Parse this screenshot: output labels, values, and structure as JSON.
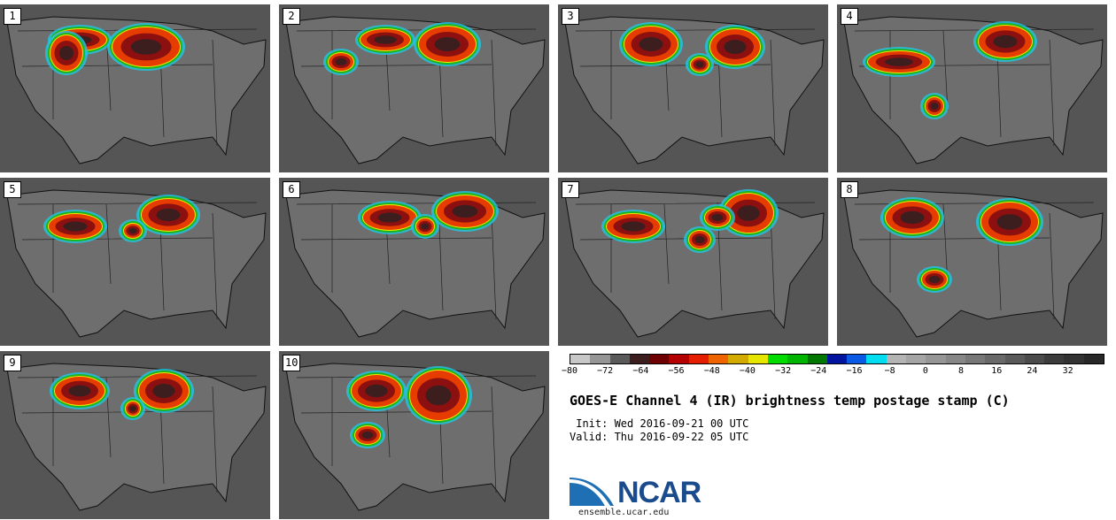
{
  "panels": [
    {
      "label": "1"
    },
    {
      "label": "2"
    },
    {
      "label": "3"
    },
    {
      "label": "4"
    },
    {
      "label": "5"
    },
    {
      "label": "6"
    },
    {
      "label": "7"
    },
    {
      "label": "8"
    },
    {
      "label": "9"
    },
    {
      "label": "10"
    }
  ],
  "colorbar": {
    "colors": [
      "#c8c8c8",
      "#969696",
      "#5a5a5a",
      "#3c1e1e",
      "#6e0000",
      "#b40000",
      "#e61e00",
      "#f06400",
      "#d2aa00",
      "#e6e600",
      "#00dc00",
      "#00b400",
      "#007800",
      "#0014a0",
      "#0a5ae6",
      "#00dcf0",
      "#b4b4b4",
      "#a5a5a5",
      "#969696",
      "#878787",
      "#787878",
      "#696969",
      "#5a5a5a",
      "#4b4b4b",
      "#3c3c3c",
      "#323232",
      "#282828"
    ],
    "ticks": [
      "−80",
      "−72",
      "−64",
      "−56",
      "−48",
      "−40",
      "−32",
      "−24",
      "−16",
      "−8",
      "0",
      "8",
      "16",
      "24",
      "32"
    ],
    "min": -80,
    "max": 40
  },
  "title": "GOES-E Channel 4 (IR) brightness temp postage stamp (C)",
  "init": " Init: Wed 2016-09-21 00 UTC",
  "valid": "Valid: Thu 2016-09-22 05 UTC",
  "logo": {
    "text": "NCAR",
    "site": "ensemble.ucar.edu"
  }
}
